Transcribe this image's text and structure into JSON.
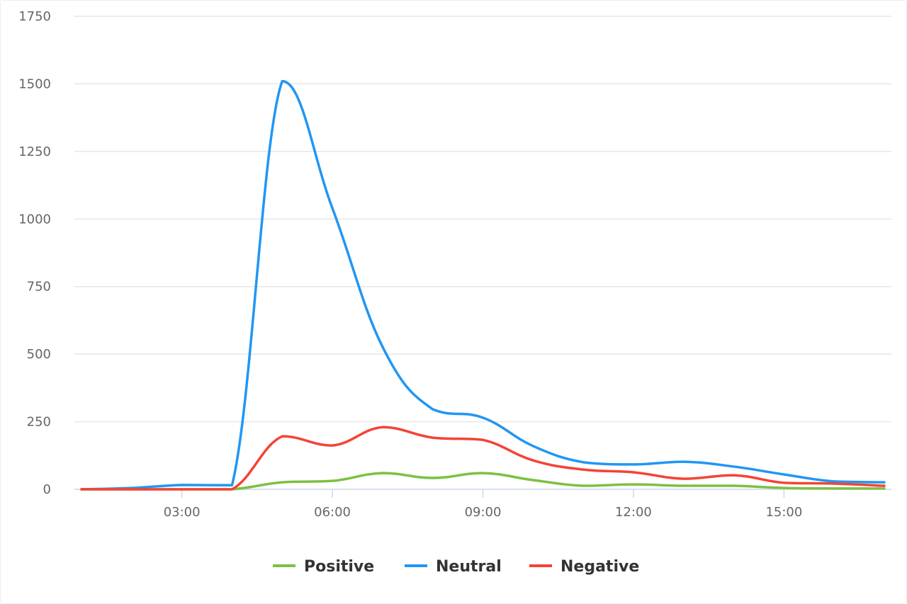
{
  "chart_data": {
    "type": "line",
    "title": "",
    "xlabel": "",
    "ylabel": "",
    "x": [
      "01:00",
      "02:00",
      "03:00",
      "04:00",
      "05:00",
      "06:00",
      "07:00",
      "08:00",
      "09:00",
      "10:00",
      "11:00",
      "12:00",
      "13:00",
      "14:00",
      "15:00",
      "16:00",
      "17:00"
    ],
    "x_tick_labels": [
      "03:00",
      "06:00",
      "09:00",
      "12:00",
      "15:00"
    ],
    "y_tick_labels": [
      "0",
      "250",
      "500",
      "750",
      "1000",
      "1250",
      "1500",
      "1750"
    ],
    "ylim": [
      0,
      1750
    ],
    "grid": "horizontal",
    "legend_position": "bottom",
    "smooth": true,
    "series": [
      {
        "name": "Positive",
        "color": "#7cc142",
        "values": [
          0,
          0,
          0,
          0,
          26,
          31,
          60,
          42,
          60,
          34,
          13,
          18,
          13,
          13,
          5,
          3,
          3
        ]
      },
      {
        "name": "Neutral",
        "color": "#2196f3",
        "values": [
          0,
          5,
          16,
          15,
          1510,
          1040,
          527,
          296,
          265,
          160,
          100,
          92,
          102,
          84,
          55,
          29,
          26
        ]
      },
      {
        "name": "Negative",
        "color": "#f44336",
        "values": [
          0,
          0,
          0,
          0,
          196,
          162,
          230,
          191,
          183,
          107,
          73,
          63,
          39,
          52,
          24,
          21,
          13
        ]
      }
    ]
  }
}
